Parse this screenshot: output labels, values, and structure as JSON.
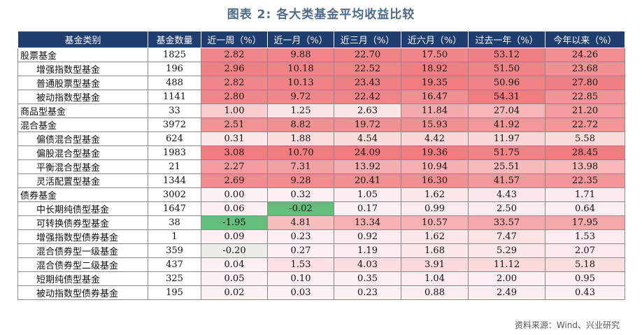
{
  "title": "图表 2:  各大类基金平均收益比较",
  "source": "资料来源：Wind、兴业研究",
  "headers": [
    "基金类别",
    "基金数量",
    "近一周（%）",
    "近一月（%）",
    "近三月（%）",
    "近六月（%）",
    "过去一年（%）",
    "今年以来（%）"
  ],
  "rows": [
    {
      "name": "股票基金",
      "indent": false,
      "count": "1825",
      "values": [
        "2.82",
        "9.88",
        "22.70",
        "17.50",
        "53.12",
        "24.26"
      ]
    },
    {
      "name": "增强指数型基金",
      "indent": true,
      "count": "196",
      "values": [
        "2.96",
        "10.18",
        "22.52",
        "18.92",
        "51.50",
        "23.68"
      ]
    },
    {
      "name": "普通股票型基金",
      "indent": true,
      "count": "488",
      "values": [
        "2.82",
        "10.13",
        "23.43",
        "19.35",
        "50.96",
        "27.80"
      ]
    },
    {
      "name": "被动指数型基金",
      "indent": true,
      "count": "1141",
      "values": [
        "2.80",
        "9.72",
        "22.42",
        "16.47",
        "54.31",
        "22.85"
      ]
    },
    {
      "name": "商品型基金",
      "indent": false,
      "count": "33",
      "values": [
        "1.00",
        "1.25",
        "2.63",
        "11.84",
        "27.04",
        "21.20"
      ]
    },
    {
      "name": "混合基金",
      "indent": false,
      "count": "3972",
      "values": [
        "2.51",
        "8.82",
        "19.72",
        "15.93",
        "41.92",
        "22.72"
      ]
    },
    {
      "name": "偏债混合型基金",
      "indent": true,
      "count": "624",
      "values": [
        "0.31",
        "1.88",
        "4.54",
        "4.42",
        "11.97",
        "5.58"
      ]
    },
    {
      "name": "偏股混合型基金",
      "indent": true,
      "count": "1983",
      "values": [
        "3.08",
        "10.70",
        "24.09",
        "19.36",
        "51.75",
        "28.45"
      ]
    },
    {
      "name": "平衡混合型基金",
      "indent": true,
      "count": "21",
      "values": [
        "2.27",
        "7.31",
        "13.92",
        "10.94",
        "25.51",
        "13.98"
      ]
    },
    {
      "name": "灵活配置型基金",
      "indent": true,
      "count": "1344",
      "values": [
        "2.69",
        "9.28",
        "20.41",
        "16.30",
        "41.57",
        "22.35"
      ]
    },
    {
      "name": "债券基金",
      "indent": false,
      "count": "3002",
      "values": [
        "0.00",
        "0.32",
        "1.05",
        "1.62",
        "4.43",
        "1.71"
      ]
    },
    {
      "name": "中长期纯债型基金",
      "indent": true,
      "count": "1647",
      "values": [
        "0.06",
        "-0.02",
        "0.17",
        "0.99",
        "2.50",
        "0.64"
      ]
    },
    {
      "name": "可转换债券型基金",
      "indent": true,
      "count": "38",
      "values": [
        "-1.95",
        "4.81",
        "13.34",
        "10.57",
        "33.57",
        "17.95"
      ]
    },
    {
      "name": "增强指数型债券基金",
      "indent": true,
      "count": "1",
      "values": [
        "0.09",
        "0.23",
        "0.92",
        "1.62",
        "7.47",
        "1.53"
      ]
    },
    {
      "name": "混合债券型一级基金",
      "indent": true,
      "count": "359",
      "values": [
        "-0.20",
        "0.27",
        "1.19",
        "1.68",
        "5.29",
        "2.07"
      ]
    },
    {
      "name": "混合债券型二级基金",
      "indent": true,
      "count": "437",
      "values": [
        "0.04",
        "1.53",
        "4.03",
        "3.91",
        "11.12",
        "5.18"
      ]
    },
    {
      "name": "短期纯债型基金",
      "indent": true,
      "count": "325",
      "values": [
        "0.05",
        "0.10",
        "0.35",
        "1.04",
        "2.00",
        "0.95"
      ]
    },
    {
      "name": "被动指数型债券基金",
      "indent": true,
      "count": "195",
      "values": [
        "0.02",
        "0.03",
        "0.23",
        "0.88",
        "2.49",
        "0.43"
      ]
    }
  ],
  "colors": {
    "header_bg": "#1f3d6e",
    "positive_high": "#f07c80",
    "neutral": "#fdf2f3",
    "negative_high": "#63be7b"
  }
}
